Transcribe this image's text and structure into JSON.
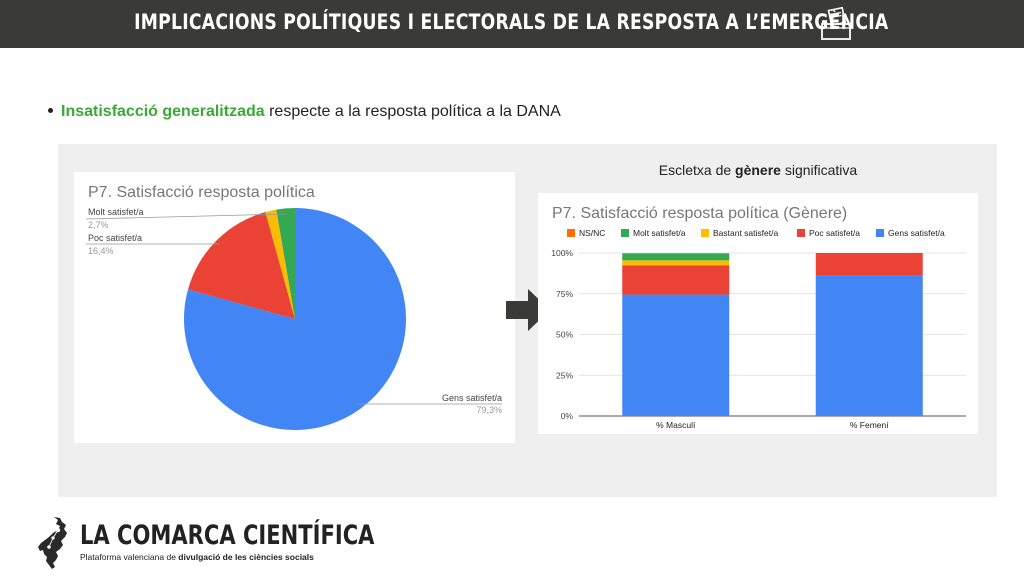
{
  "header": {
    "title": "IMPLICACIONS POLÍTIQUES I ELECTORALS DE LA RESPOSTA A L’EMERGÈNCIA",
    "ballot_icon": "ballot-box-icon"
  },
  "bullet": {
    "highlight": "Insatisfacció generalitzada",
    "rest": " respecte a la resposta política a la DANA"
  },
  "subheading": {
    "pre": "Escletxa de ",
    "bold": "gènere",
    "post": " significativa"
  },
  "colors": {
    "blue": "#4285f4",
    "red": "#ea4335",
    "yellow": "#fbbc04",
    "green": "#34a853",
    "orange": "#ff6d01",
    "highlight_green": "#3aa935",
    "header_bg": "#3a3a38"
  },
  "chart_data": [
    {
      "type": "pie",
      "title": "P7. Satisfacció resposta política",
      "slices": [
        {
          "label": "Gens satisfet/a",
          "value": 79.3,
          "display": "79,3%",
          "color": "#4285f4"
        },
        {
          "label": "Poc satisfet/a",
          "value": 16.4,
          "display": "16,4%",
          "color": "#ea4335"
        },
        {
          "label": "Bastant satisfet/a",
          "value": 1.6,
          "color": "#fbbc04"
        },
        {
          "label": "Molt satisfet/a",
          "value": 2.7,
          "display": "2,7%",
          "color": "#34a853"
        }
      ]
    },
    {
      "type": "bar",
      "stacked": true,
      "title": "P7. Satisfacció resposta política (Gènere)",
      "categories": [
        "% Masculí",
        "% Femení"
      ],
      "y_ticks": [
        "0%",
        "25%",
        "50%",
        "75%",
        "100%"
      ],
      "ylim": [
        0,
        100
      ],
      "legend_position": "top",
      "series": [
        {
          "name": "NS/NC",
          "color": "#ff6d01",
          "values": [
            0.5,
            0
          ]
        },
        {
          "name": "Molt satisfet/a",
          "color": "#34a853",
          "values": [
            4,
            0
          ]
        },
        {
          "name": "Bastant satisfet/a",
          "color": "#fbbc04",
          "values": [
            3,
            0
          ]
        },
        {
          "name": "Poc satisfet/a",
          "color": "#ea4335",
          "values": [
            18,
            14
          ]
        },
        {
          "name": "Gens satisfet/a",
          "color": "#4285f4",
          "values": [
            74.5,
            86
          ]
        }
      ],
      "stack_order": [
        "Gens satisfet/a",
        "Poc satisfet/a",
        "Bastant satisfet/a",
        "Molt satisfet/a",
        "NS/NC"
      ]
    }
  ],
  "footer": {
    "brand": "LA COMARCA CIENTÍFICA",
    "tagline_pre": "Plataforma valenciana de ",
    "tagline_bold": "divulgació de les ciències socials"
  }
}
